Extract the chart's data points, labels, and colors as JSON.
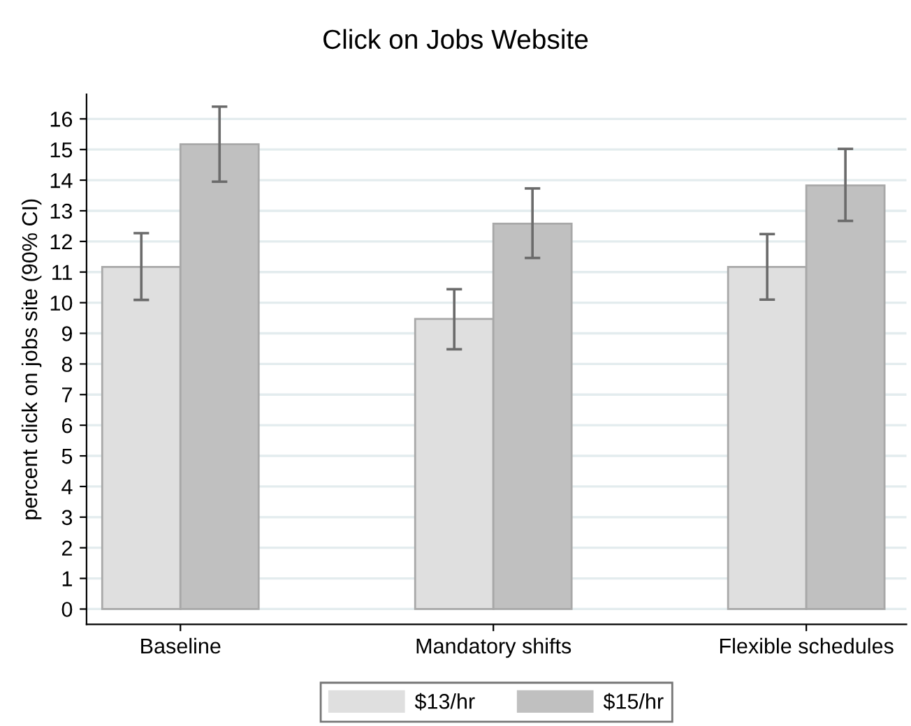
{
  "chart_data": {
    "type": "bar",
    "title": "Click on Jobs Website",
    "ylabel": "percent click on jobs site (90% CI)",
    "categories": [
      "Baseline",
      "Mandatory shifts",
      "Flexible schedules"
    ],
    "series": [
      {
        "name": "$13/hr",
        "color": "#dfdfdf",
        "values": [
          11.17,
          9.47,
          11.17
        ],
        "errors": [
          [
            10.09,
            12.27
          ],
          [
            8.48,
            10.44
          ],
          [
            10.1,
            12.24
          ]
        ]
      },
      {
        "name": "$15/hr",
        "color": "#c0c0c0",
        "values": [
          15.17,
          12.58,
          13.83
        ],
        "errors": [
          [
            13.95,
            16.4
          ],
          [
            11.46,
            13.73
          ],
          [
            12.67,
            15.02
          ]
        ]
      }
    ],
    "ylim": [
      -0.5,
      16.8
    ],
    "yticks": [
      0,
      1,
      2,
      3,
      4,
      5,
      6,
      7,
      8,
      9,
      10,
      11,
      12,
      13,
      14,
      15,
      16
    ],
    "grid": "y",
    "legend": "bottom"
  }
}
